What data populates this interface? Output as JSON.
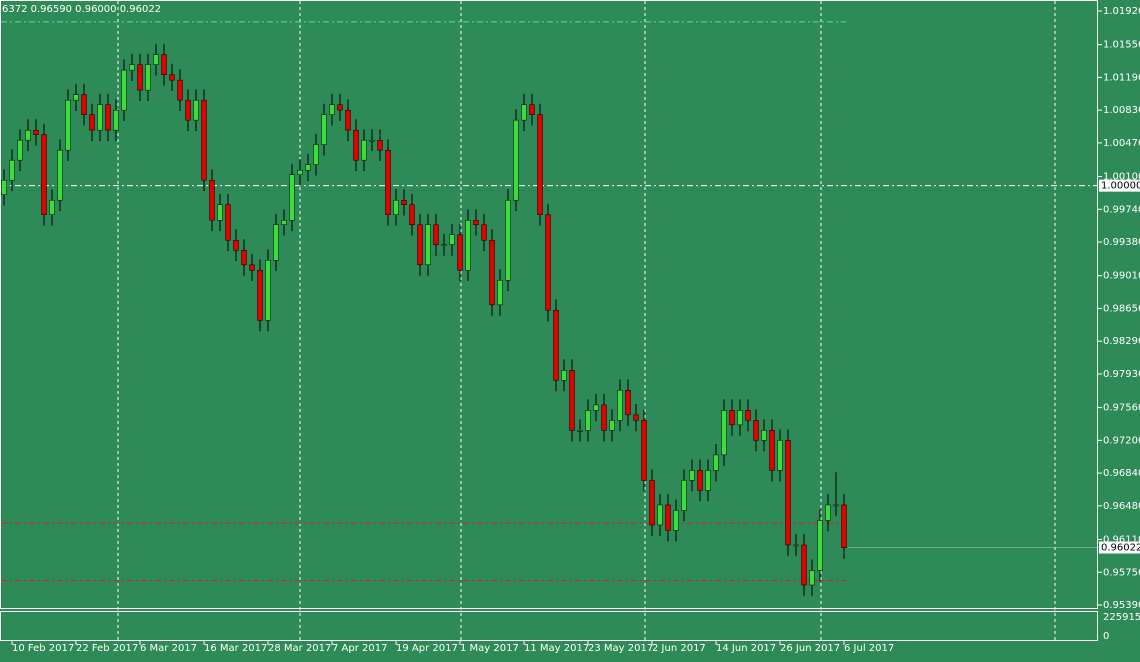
{
  "chart_data": {
    "type": "candlestick",
    "title": "6372 0.96590 0.96000 0.96022",
    "categories": [
      null,
      "10 Feb 2017",
      null,
      null,
      null,
      null,
      null,
      null,
      null,
      "22 Feb 2017",
      null,
      null,
      null,
      null,
      null,
      null,
      null,
      "6 Mar 2017",
      null,
      null,
      null,
      null,
      null,
      null,
      null,
      "16 Mar 2017",
      null,
      null,
      null,
      null,
      null,
      null,
      null,
      "28 Mar 2017",
      null,
      null,
      null,
      null,
      null,
      null,
      null,
      "7 Apr 2017",
      null,
      null,
      null,
      null,
      null,
      null,
      null,
      "19 Apr 2017",
      null,
      null,
      null,
      null,
      null,
      null,
      null,
      "1 May 2017",
      null,
      null,
      null,
      null,
      null,
      null,
      null,
      "11 May 2017",
      null,
      null,
      null,
      null,
      null,
      null,
      null,
      "23 May 2017",
      null,
      null,
      null,
      null,
      null,
      null,
      null,
      "2 Jun 2017",
      null,
      null,
      null,
      null,
      null,
      null,
      null,
      "14 Jun 2017",
      null,
      null,
      null,
      null,
      null,
      null,
      null,
      "26 Jun 2017",
      null,
      null,
      null,
      null,
      null,
      null,
      null,
      "6 Jul 2017"
    ],
    "ohlc": [
      [
        0.999,
        1.0018,
        0.9978,
        1.0006
      ],
      [
        1.0006,
        1.004,
        0.9994,
        1.0028
      ],
      [
        1.0028,
        1.0062,
        1.0016,
        1.005
      ],
      [
        1.005,
        1.0073,
        1.0038,
        1.0061
      ],
      [
        1.0061,
        1.0073,
        1.0044,
        1.0056
      ],
      [
        1.0056,
        1.0068,
        0.9956,
        0.9968
      ],
      [
        0.9968,
        0.9996,
        0.9956,
        0.9984
      ],
      [
        0.9984,
        1.0051,
        0.9972,
        1.0039
      ],
      [
        1.0039,
        1.0106,
        1.0027,
        1.0094
      ],
      [
        1.0094,
        1.0112,
        1.0082,
        1.01
      ],
      [
        1.01,
        1.0112,
        1.0066,
        1.0078
      ],
      [
        1.0078,
        1.009,
        1.0049,
        1.0061
      ],
      [
        1.0061,
        1.0101,
        1.0049,
        1.0089
      ],
      [
        1.0089,
        1.0101,
        1.0049,
        1.0061
      ],
      [
        1.0061,
        1.0095,
        1.0049,
        1.0083
      ],
      [
        1.0083,
        1.0139,
        1.0071,
        1.0127
      ],
      [
        1.0127,
        1.0145,
        1.0115,
        1.0133
      ],
      [
        1.0133,
        1.0145,
        1.0093,
        1.0105
      ],
      [
        1.0105,
        1.0145,
        1.0093,
        1.0133
      ],
      [
        1.0133,
        1.0156,
        1.0121,
        1.0144
      ],
      [
        1.0144,
        1.0156,
        1.011,
        1.0122
      ],
      [
        1.0122,
        1.0134,
        1.0104,
        1.0116
      ],
      [
        1.0116,
        1.0128,
        1.0082,
        1.0094
      ],
      [
        1.0094,
        1.0106,
        1.006,
        1.0072
      ],
      [
        1.0072,
        1.0106,
        1.006,
        1.0094
      ],
      [
        1.0094,
        1.0106,
        0.9994,
        1.0006
      ],
      [
        1.0006,
        1.0018,
        0.995,
        0.9962
      ],
      [
        0.9962,
        0.9991,
        0.995,
        0.9979
      ],
      [
        0.9979,
        0.9991,
        0.9928,
        0.994
      ],
      [
        0.994,
        0.9952,
        0.9917,
        0.9929
      ],
      [
        0.9929,
        0.9941,
        0.9901,
        0.9913
      ],
      [
        0.9913,
        0.9925,
        0.9895,
        0.9907
      ],
      [
        0.9907,
        0.9919,
        0.984,
        0.9852
      ],
      [
        0.9852,
        0.993,
        0.984,
        0.9918
      ],
      [
        0.9918,
        0.9969,
        0.9906,
        0.9957
      ],
      [
        0.9957,
        0.9974,
        0.9945,
        0.9962
      ],
      [
        0.9962,
        1.0024,
        0.995,
        1.0012
      ],
      [
        1.0012,
        1.0029,
        1.0,
        1.0017
      ],
      [
        1.0017,
        1.0035,
        1.0005,
        1.0023
      ],
      [
        1.0023,
        1.0057,
        1.0011,
        1.0045
      ],
      [
        1.0045,
        1.009,
        1.0033,
        1.0078
      ],
      [
        1.0078,
        1.0101,
        1.0066,
        1.0089
      ],
      [
        1.0089,
        1.0101,
        1.0071,
        1.0083
      ],
      [
        1.0083,
        1.0095,
        1.0049,
        1.0061
      ],
      [
        1.0061,
        1.0073,
        1.0016,
        1.0028
      ],
      [
        1.0028,
        1.0062,
        1.0016,
        1.005
      ],
      [
        1.005,
        1.0062,
        1.0038,
        1.005
      ],
      [
        1.005,
        1.0062,
        1.0027,
        1.0039
      ],
      [
        1.0039,
        1.0051,
        0.9956,
        0.9968
      ],
      [
        0.9968,
        0.9996,
        0.9956,
        0.9984
      ],
      [
        0.9984,
        0.9996,
        0.9967,
        0.9979
      ],
      [
        0.9979,
        0.9991,
        0.9945,
        0.9957
      ],
      [
        0.9957,
        0.9969,
        0.9901,
        0.9913
      ],
      [
        0.9913,
        0.9969,
        0.9901,
        0.9957
      ],
      [
        0.9957,
        0.9969,
        0.9923,
        0.9935
      ],
      [
        0.9935,
        0.9947,
        0.9923,
        0.9935
      ],
      [
        0.9935,
        0.9958,
        0.9923,
        0.9946
      ],
      [
        0.9946,
        0.9958,
        0.9895,
        0.9907
      ],
      [
        0.9907,
        0.9974,
        0.9895,
        0.9962
      ],
      [
        0.9962,
        0.9974,
        0.9945,
        0.9957
      ],
      [
        0.9957,
        0.9969,
        0.9928,
        0.994
      ],
      [
        0.994,
        0.9952,
        0.9857,
        0.9869
      ],
      [
        0.9869,
        0.9908,
        0.9857,
        0.9896
      ],
      [
        0.9896,
        0.9996,
        0.9884,
        0.9984
      ],
      [
        0.9984,
        1.0084,
        0.9972,
        1.0072
      ],
      [
        1.0072,
        1.0101,
        1.006,
        1.0089
      ],
      [
        1.0089,
        1.0101,
        1.0066,
        1.0078
      ],
      [
        1.0078,
        1.009,
        0.9956,
        0.9968
      ],
      [
        0.9968,
        0.998,
        0.9851,
        0.9863
      ],
      [
        0.9863,
        0.9875,
        0.9774,
        0.9786
      ],
      [
        0.9786,
        0.9809,
        0.9774,
        0.9797
      ],
      [
        0.9797,
        0.9809,
        0.9719,
        0.9731
      ],
      [
        0.9731,
        0.9743,
        0.9719,
        0.9731
      ],
      [
        0.9731,
        0.9765,
        0.9719,
        0.9753
      ],
      [
        0.9753,
        0.9771,
        0.9741,
        0.9759
      ],
      [
        0.9759,
        0.9771,
        0.9719,
        0.9731
      ],
      [
        0.9731,
        0.9754,
        0.9719,
        0.9742
      ],
      [
        0.9742,
        0.9787,
        0.973,
        0.9775
      ],
      [
        0.9775,
        0.9787,
        0.9736,
        0.9748
      ],
      [
        0.9748,
        0.976,
        0.973,
        0.9742
      ],
      [
        0.9742,
        0.9754,
        0.9664,
        0.9676
      ],
      [
        0.9676,
        0.9688,
        0.9615,
        0.9627
      ],
      [
        0.9627,
        0.9661,
        0.9615,
        0.9649
      ],
      [
        0.9649,
        0.9661,
        0.9609,
        0.9621
      ],
      [
        0.9621,
        0.9655,
        0.9609,
        0.9643
      ],
      [
        0.9643,
        0.9688,
        0.9631,
        0.9676
      ],
      [
        0.9676,
        0.9699,
        0.9664,
        0.9687
      ],
      [
        0.9687,
        0.9699,
        0.9653,
        0.9665
      ],
      [
        0.9665,
        0.9699,
        0.9653,
        0.9687
      ],
      [
        0.9687,
        0.9716,
        0.9675,
        0.9704
      ],
      [
        0.9704,
        0.9765,
        0.9692,
        0.9753
      ],
      [
        0.9753,
        0.9765,
        0.9725,
        0.9737
      ],
      [
        0.9737,
        0.9765,
        0.9725,
        0.9753
      ],
      [
        0.9753,
        0.9765,
        0.973,
        0.9742
      ],
      [
        0.9742,
        0.9754,
        0.9708,
        0.972
      ],
      [
        0.972,
        0.9743,
        0.9708,
        0.9731
      ],
      [
        0.9731,
        0.9743,
        0.9675,
        0.9687
      ],
      [
        0.9687,
        0.9732,
        0.9675,
        0.972
      ],
      [
        0.972,
        0.9732,
        0.9593,
        0.9605
      ],
      [
        0.9605,
        0.9617,
        0.9593,
        0.9605
      ],
      [
        0.9605,
        0.9617,
        0.9549,
        0.9561
      ],
      [
        0.9561,
        0.9589,
        0.9549,
        0.9577
      ],
      [
        0.9577,
        0.9644,
        0.9565,
        0.9632
      ],
      [
        0.9632,
        0.9661,
        0.962,
        0.9649
      ],
      [
        0.9649,
        0.9685,
        0.9637,
        0.9649
      ],
      [
        0.9649,
        0.9661,
        0.959,
        0.9602
      ]
    ],
    "up_color": "#3cdc3c",
    "down_color": "#e00000",
    "background": "#2e8b57",
    "ylim": [
      0.9539,
      1.0192
    ],
    "yticks": [
      {
        "value": 1.0192,
        "label": "1.01920"
      },
      {
        "value": 1.0155,
        "label": "1.01550"
      },
      {
        "value": 1.0119,
        "label": "1.01190"
      },
      {
        "value": 1.0083,
        "label": "1.00830"
      },
      {
        "value": 1.0047,
        "label": "1.00470"
      },
      {
        "value": 1.001,
        "label": "1.00100"
      },
      {
        "value": 0.9974,
        "label": "0.99740"
      },
      {
        "value": 0.9938,
        "label": "0.99380"
      },
      {
        "value": 0.9901,
        "label": "0.99010"
      },
      {
        "value": 0.9865,
        "label": "0.98650"
      },
      {
        "value": 0.9829,
        "label": "0.98290"
      },
      {
        "value": 0.9793,
        "label": "0.97930"
      },
      {
        "value": 0.9756,
        "label": "0.97560"
      },
      {
        "value": 0.972,
        "label": "0.97200"
      },
      {
        "value": 0.9684,
        "label": "0.96840"
      },
      {
        "value": 0.9648,
        "label": "0.96480"
      },
      {
        "value": 0.9611,
        "label": "0.96110"
      },
      {
        "value": 0.9575,
        "label": "0.95750"
      },
      {
        "value": 0.9539,
        "label": "0.95390"
      }
    ],
    "hlines": [
      {
        "value": 1.0,
        "label": "1.00000",
        "color": "#ffffff"
      },
      {
        "value": 1.018,
        "color": "#40e0d0"
      },
      {
        "value": 0.9629,
        "color": "#e02020"
      },
      {
        "value": 0.9566,
        "color": "#e02020"
      }
    ],
    "last_price": {
      "value": 0.96022,
      "label": "0.96022"
    },
    "volume_yticks": [
      0,
      225915
    ]
  }
}
